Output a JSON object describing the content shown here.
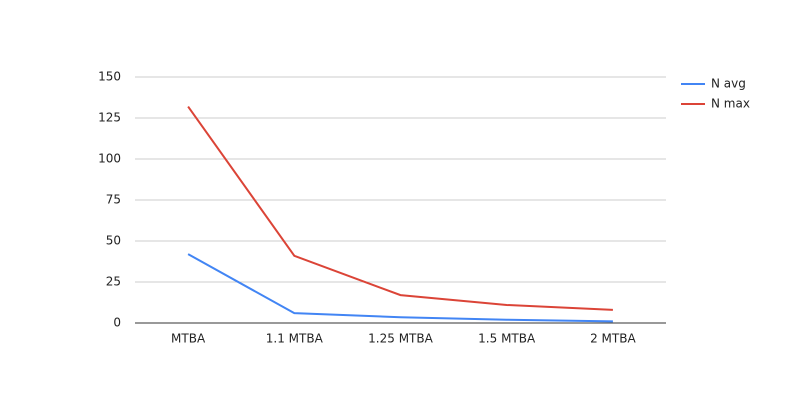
{
  "chart_data": {
    "type": "line",
    "categories": [
      "MTBA",
      "1.1 MTBA",
      "1.25 MTBA",
      "1.5 MTBA",
      "2 MTBA"
    ],
    "series": [
      {
        "name": "N avg",
        "color": "#4285f4",
        "values": [
          42,
          6,
          3.5,
          2,
          1
        ]
      },
      {
        "name": "N max",
        "color": "#db4437",
        "values": [
          132,
          41,
          17,
          11,
          8
        ]
      }
    ],
    "ylim": [
      0,
      150
    ],
    "yticks": [
      0,
      25,
      50,
      75,
      100,
      125,
      150
    ],
    "grid": true,
    "legend": "right"
  }
}
